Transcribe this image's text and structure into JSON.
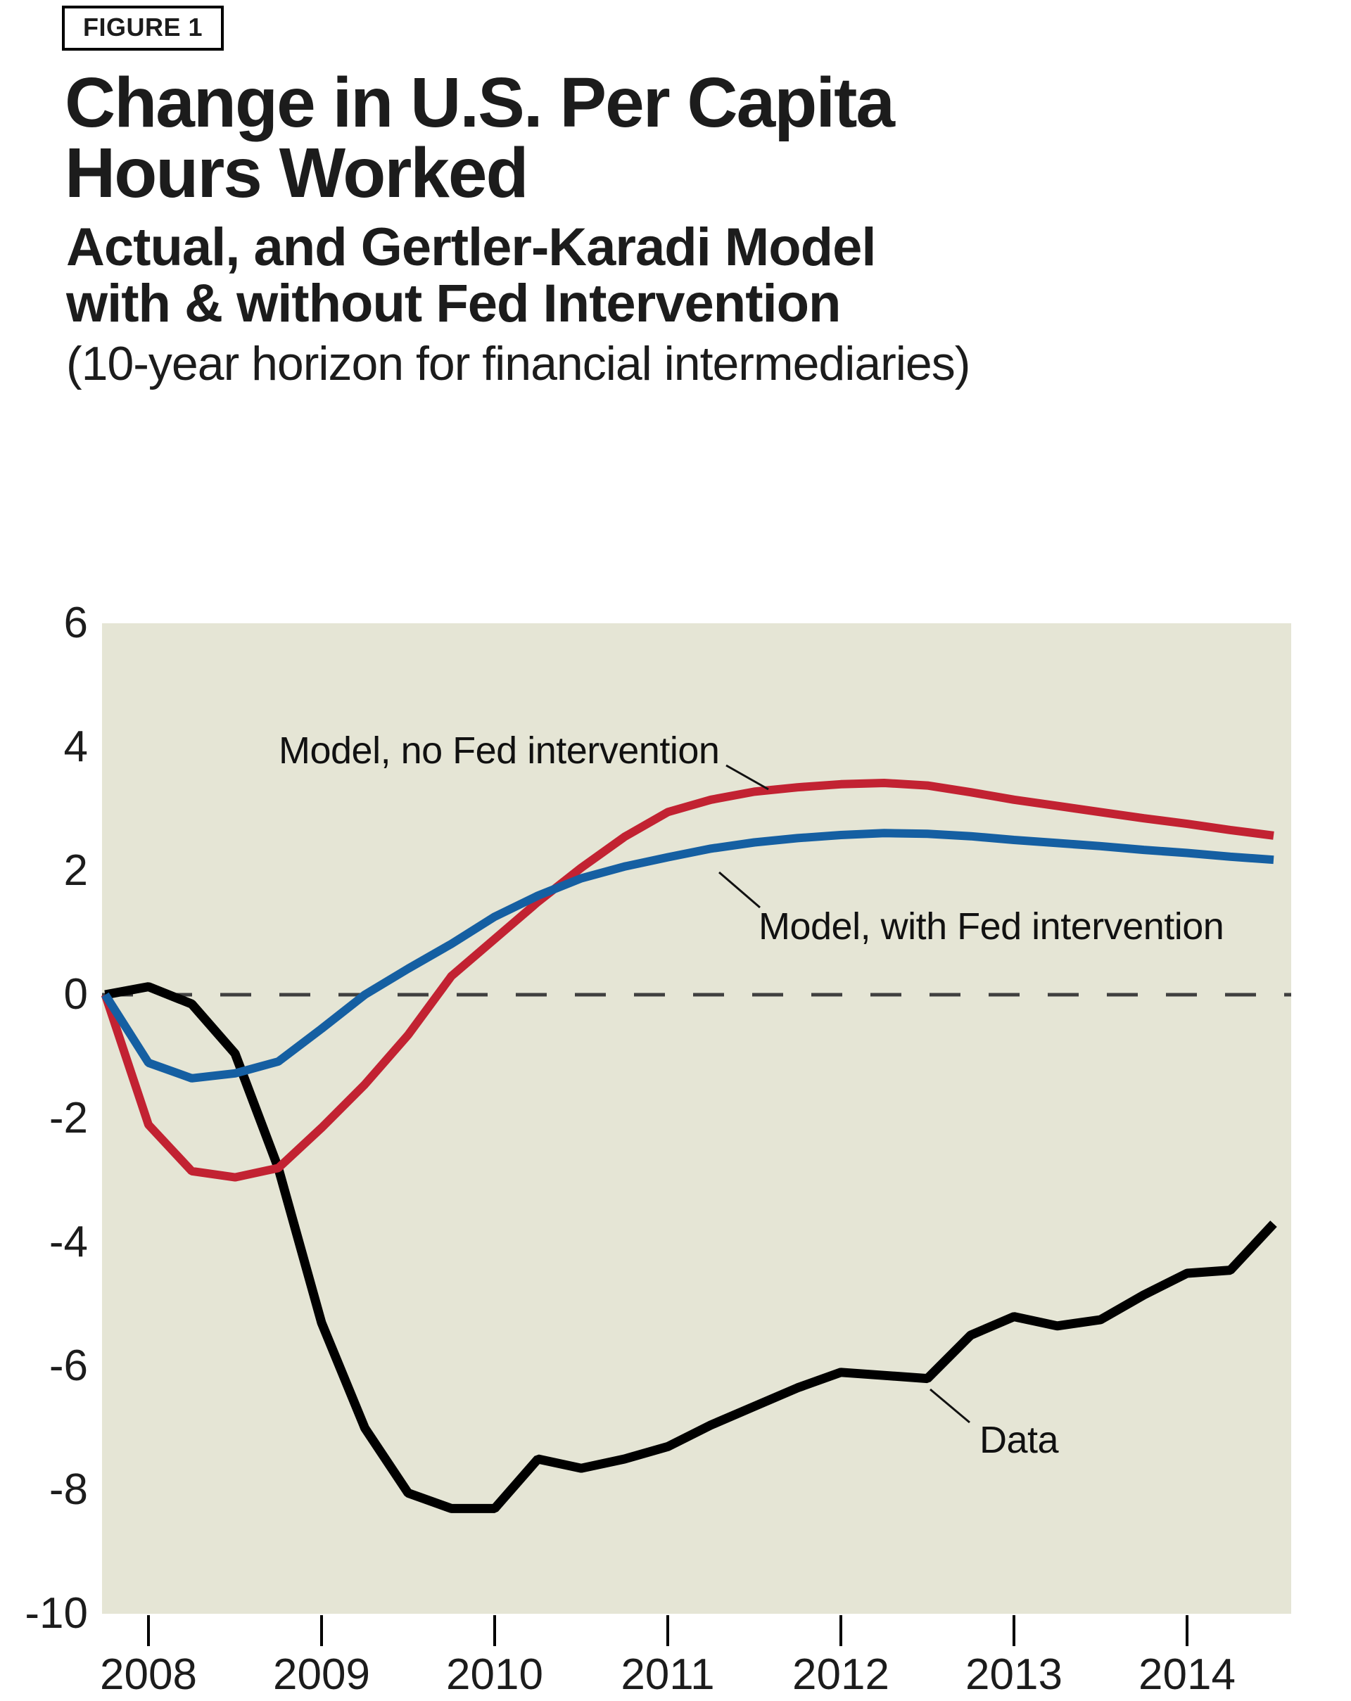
{
  "figure_label": "FIGURE 1",
  "title": {
    "line1": "Change in U.S. Per Capita",
    "line2": "Hours Worked"
  },
  "subtitle": {
    "line1": "Actual, and Gertler-Karadi Model",
    "line2": "with & without Fed Intervention"
  },
  "subtitle_note": "(10-year horizon for financial intermediaries)",
  "colors": {
    "plot_background": "#e5e5d5",
    "data_line": "#000000",
    "no_fed_line": "#c22232",
    "with_fed_line": "#155fa2",
    "zero_dash_line": "#3f3f3f",
    "text": "#1c1c1c"
  },
  "chart_data": {
    "type": "line",
    "title": "Change in U.S. Per Capita Hours Worked",
    "xlabel": "",
    "ylabel": "",
    "xlim": [
      2007.73,
      2014.6
    ],
    "ylim": [
      -10,
      6
    ],
    "x_ticks": [
      "2008",
      "2009",
      "2010",
      "2011",
      "2012",
      "2013",
      "2014"
    ],
    "y_ticks": [
      "6",
      "4",
      "2",
      "0",
      "-2",
      "-4",
      "-6",
      "-8",
      "-10"
    ],
    "grid": false,
    "legend_position": "inline-annotations",
    "zero_line": "dashed",
    "series": [
      {
        "name": "Data",
        "color": "#000000",
        "points": [
          [
            2007.75,
            0
          ],
          [
            2008.0,
            0.13
          ],
          [
            2008.25,
            -0.15
          ],
          [
            2008.5,
            -0.95
          ],
          [
            2008.75,
            -2.8
          ],
          [
            2009.0,
            -5.3
          ],
          [
            2009.25,
            -7.0
          ],
          [
            2009.5,
            -8.05
          ],
          [
            2009.75,
            -8.3
          ],
          [
            2010.0,
            -8.3
          ],
          [
            2010.25,
            -7.5
          ],
          [
            2010.5,
            -7.65
          ],
          [
            2010.75,
            -7.5
          ],
          [
            2011.0,
            -7.3
          ],
          [
            2011.25,
            -6.95
          ],
          [
            2011.5,
            -6.65
          ],
          [
            2011.75,
            -6.35
          ],
          [
            2012.0,
            -6.1
          ],
          [
            2012.25,
            -6.15
          ],
          [
            2012.5,
            -6.2
          ],
          [
            2012.75,
            -5.5
          ],
          [
            2013.0,
            -5.2
          ],
          [
            2013.25,
            -5.35
          ],
          [
            2013.5,
            -5.25
          ],
          [
            2013.75,
            -4.85
          ],
          [
            2014.0,
            -4.5
          ],
          [
            2014.25,
            -4.45
          ],
          [
            2014.5,
            -3.7
          ]
        ]
      },
      {
        "name": "Model, no Fed intervention",
        "color": "#c22232",
        "points": [
          [
            2007.75,
            0
          ],
          [
            2008.0,
            -2.1
          ],
          [
            2008.25,
            -2.85
          ],
          [
            2008.5,
            -2.95
          ],
          [
            2008.75,
            -2.8
          ],
          [
            2009.0,
            -2.15
          ],
          [
            2009.25,
            -1.45
          ],
          [
            2009.5,
            -0.65
          ],
          [
            2009.75,
            0.3
          ],
          [
            2010.0,
            0.9
          ],
          [
            2010.25,
            1.5
          ],
          [
            2010.5,
            2.05
          ],
          [
            2010.75,
            2.55
          ],
          [
            2011.0,
            2.95
          ],
          [
            2011.25,
            3.15
          ],
          [
            2011.5,
            3.28
          ],
          [
            2011.75,
            3.35
          ],
          [
            2012.0,
            3.4
          ],
          [
            2012.25,
            3.42
          ],
          [
            2012.5,
            3.38
          ],
          [
            2012.75,
            3.27
          ],
          [
            2013.0,
            3.15
          ],
          [
            2013.25,
            3.05
          ],
          [
            2013.5,
            2.95
          ],
          [
            2013.75,
            2.85
          ],
          [
            2014.0,
            2.76
          ],
          [
            2014.25,
            2.66
          ],
          [
            2014.5,
            2.57
          ]
        ]
      },
      {
        "name": "Model, with Fed intervention",
        "color": "#155fa2",
        "points": [
          [
            2007.75,
            0
          ],
          [
            2008.0,
            -1.1
          ],
          [
            2008.25,
            -1.35
          ],
          [
            2008.5,
            -1.27
          ],
          [
            2008.75,
            -1.08
          ],
          [
            2009.0,
            -0.55
          ],
          [
            2009.25,
            0.0
          ],
          [
            2009.5,
            0.42
          ],
          [
            2009.75,
            0.82
          ],
          [
            2010.0,
            1.26
          ],
          [
            2010.25,
            1.6
          ],
          [
            2010.5,
            1.88
          ],
          [
            2010.75,
            2.07
          ],
          [
            2011.0,
            2.22
          ],
          [
            2011.25,
            2.36
          ],
          [
            2011.5,
            2.46
          ],
          [
            2011.75,
            2.53
          ],
          [
            2012.0,
            2.58
          ],
          [
            2012.25,
            2.61
          ],
          [
            2012.5,
            2.6
          ],
          [
            2012.75,
            2.56
          ],
          [
            2013.0,
            2.5
          ],
          [
            2013.25,
            2.45
          ],
          [
            2013.5,
            2.4
          ],
          [
            2013.75,
            2.34
          ],
          [
            2014.0,
            2.29
          ],
          [
            2014.25,
            2.23
          ],
          [
            2014.5,
            2.18
          ]
        ]
      }
    ]
  }
}
